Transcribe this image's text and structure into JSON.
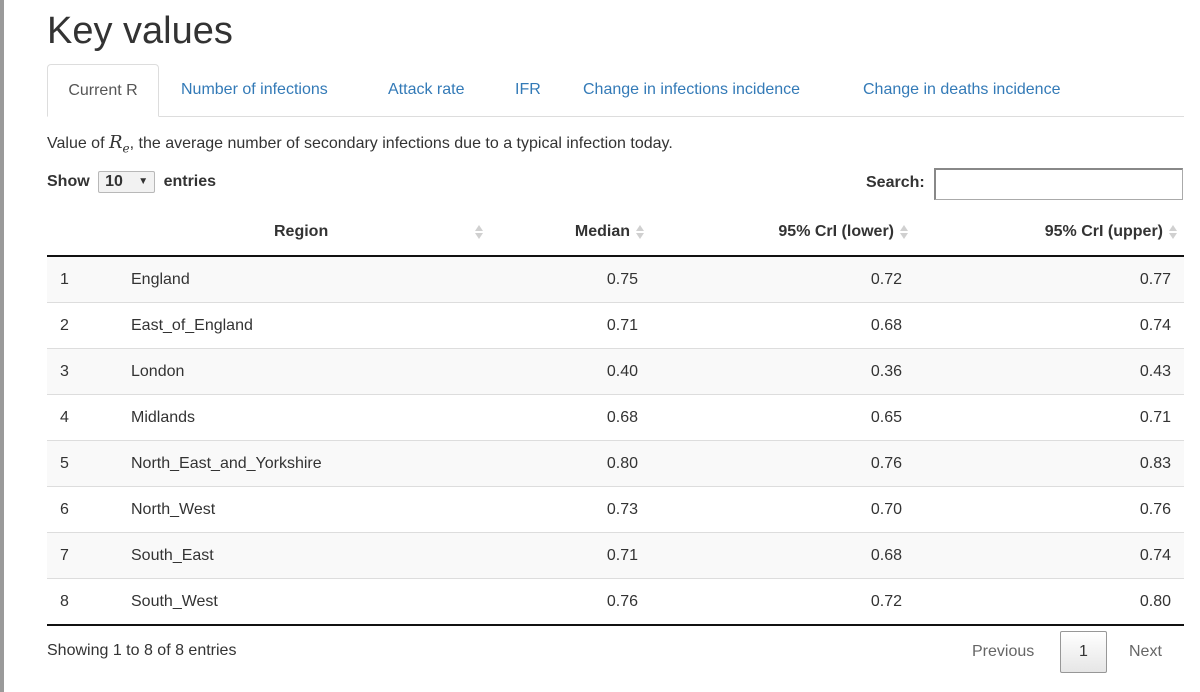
{
  "page": {
    "title": "Key values"
  },
  "tabs": [
    {
      "label": "Current R",
      "active": true
    },
    {
      "label": "Number of infections"
    },
    {
      "label": "Attack rate"
    },
    {
      "label": "IFR"
    },
    {
      "label": "Change in infections incidence"
    },
    {
      "label": "Change in deaths incidence"
    }
  ],
  "description": {
    "prefix": "Value of ",
    "symbol": "R",
    "subscript": "e",
    "suffix": ", the average number of secondary infections due to a typical infection today."
  },
  "length_menu": {
    "show_label": "Show",
    "value": "10",
    "entries_label": "entries"
  },
  "search": {
    "label": "Search:",
    "value": ""
  },
  "table": {
    "columns": [
      "",
      "Region",
      "Median",
      "95% CrI (lower)",
      "95% CrI (upper)"
    ],
    "rows": [
      [
        "1",
        "England",
        "0.75",
        "0.72",
        "0.77"
      ],
      [
        "2",
        "East_of_England",
        "0.71",
        "0.68",
        "0.74"
      ],
      [
        "3",
        "London",
        "0.40",
        "0.36",
        "0.43"
      ],
      [
        "4",
        "Midlands",
        "0.68",
        "0.65",
        "0.71"
      ],
      [
        "5",
        "North_East_and_Yorkshire",
        "0.80",
        "0.76",
        "0.83"
      ],
      [
        "6",
        "North_West",
        "0.73",
        "0.70",
        "0.76"
      ],
      [
        "7",
        "South_East",
        "0.71",
        "0.68",
        "0.74"
      ],
      [
        "8",
        "South_West",
        "0.76",
        "0.72",
        "0.80"
      ]
    ]
  },
  "info": "Showing 1 to 8 of 8 entries",
  "pagination": {
    "previous": "Previous",
    "current": "1",
    "next": "Next"
  },
  "colors": {
    "link": "#337ab7",
    "stripe": "#f9f9f9",
    "rule": "#111111"
  }
}
